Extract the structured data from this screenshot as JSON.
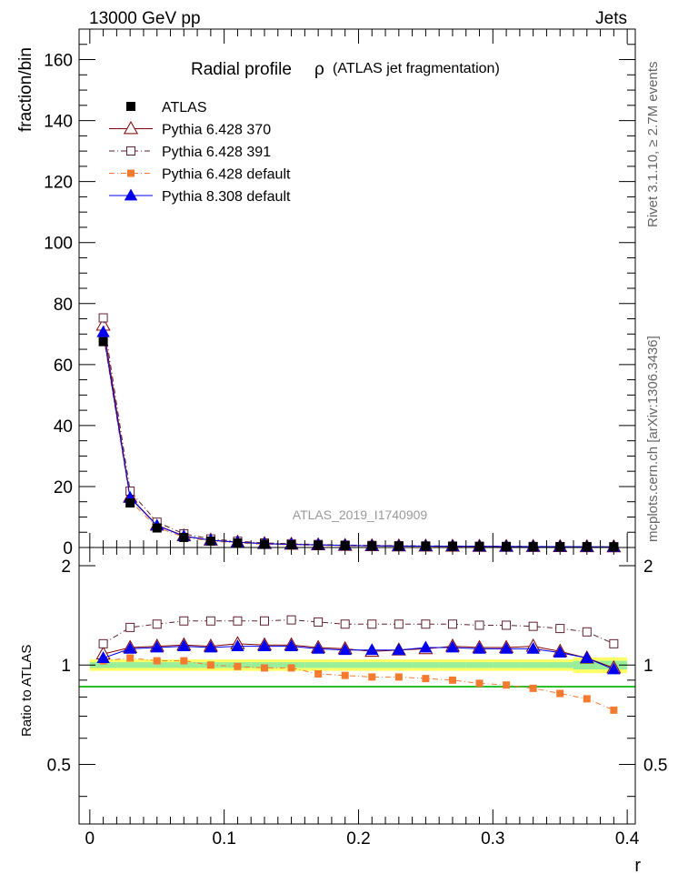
{
  "header": {
    "left": "13000 GeV pp",
    "right": "Jets"
  },
  "side_labels": {
    "rivet": "Rivet 3.1.10, ≥ 2.7M events",
    "mcplots": "mcplots.cern.ch [arXiv:1306.3436]"
  },
  "chart_data": {
    "type": "scatter",
    "title": "Radial profile",
    "title_symbol": "ρ",
    "title_note": "(ATLAS jet fragmentation)",
    "analysis_label": "ATLAS_2019_I1740909",
    "xlabel": "r",
    "ylabel_main": "fraction/bin",
    "ylabel_ratio": "Ratio to ATLAS",
    "xlim": [
      -0.008,
      0.406
    ],
    "ylim_main": [
      0,
      170
    ],
    "ylim_ratio": [
      0.33,
      2.27
    ],
    "legend_position": "top-left",
    "x_ticks": [
      0,
      0.1,
      0.2,
      0.3,
      0.4
    ],
    "x_tick_labels": [
      "0",
      "0.1",
      "0.2",
      "0.3",
      "0.4"
    ],
    "y_ticks_main": [
      0,
      20,
      40,
      60,
      80,
      100,
      120,
      140,
      160
    ],
    "y_tick_labels_main": [
      "0",
      "20",
      "40",
      "60",
      "80",
      "100",
      "120",
      "140",
      "160"
    ],
    "y_ticks_ratio": [
      0.5,
      1,
      2
    ],
    "y_tick_labels_ratio": [
      "0.5",
      "1",
      "2"
    ],
    "x": [
      0.01,
      0.03,
      0.05,
      0.07,
      0.09,
      0.11,
      0.13,
      0.15,
      0.17,
      0.19,
      0.21,
      0.23,
      0.25,
      0.27,
      0.29,
      0.31,
      0.33,
      0.35,
      0.37,
      0.39
    ],
    "band_colors": [
      "#ffff66",
      "#99ee99"
    ],
    "series": [
      {
        "name": "ATLAS",
        "marker": "square-filled",
        "color": "#000000",
        "line": "none",
        "values": [
          67.5,
          14.6,
          6.4,
          3.3,
          2.1,
          1.5,
          1.1,
          0.9,
          0.75,
          0.6,
          0.52,
          0.45,
          0.4,
          0.36,
          0.32,
          0.29,
          0.27,
          0.25,
          0.23,
          0.21
        ],
        "ratio": [
          1,
          1,
          1,
          1,
          1,
          1,
          1,
          1,
          1,
          1,
          1,
          1,
          1,
          1,
          1,
          1,
          1,
          1,
          1,
          1
        ]
      },
      {
        "name": "Pythia 6.428 370",
        "marker": "triangle-open",
        "color": "#800000",
        "line": "solid",
        "values": [
          72.9,
          16.5,
          7.3,
          3.8,
          2.4,
          1.74,
          1.27,
          1.04,
          0.85,
          0.67,
          0.57,
          0.5,
          0.45,
          0.41,
          0.36,
          0.33,
          0.31,
          0.28,
          0.24,
          0.21
        ],
        "ratio": [
          1.08,
          1.13,
          1.14,
          1.15,
          1.14,
          1.16,
          1.15,
          1.15,
          1.13,
          1.12,
          1.1,
          1.11,
          1.12,
          1.14,
          1.13,
          1.13,
          1.14,
          1.1,
          1.05,
          0.98
        ]
      },
      {
        "name": "Pythia 6.428 391",
        "marker": "square-open",
        "color": "#602030",
        "line": "dashdot",
        "values": [
          75.3,
          18.5,
          8.3,
          4.5,
          2.8,
          2.04,
          1.49,
          1.24,
          1.0,
          0.79,
          0.68,
          0.6,
          0.53,
          0.48,
          0.42,
          0.38,
          0.35,
          0.32,
          0.29,
          0.24
        ],
        "ratio": [
          1.16,
          1.3,
          1.33,
          1.36,
          1.36,
          1.36,
          1.36,
          1.37,
          1.35,
          1.33,
          1.33,
          1.33,
          1.33,
          1.33,
          1.32,
          1.32,
          1.31,
          1.29,
          1.26,
          1.16
        ]
      },
      {
        "name": "Pythia 6.428 default",
        "marker": "square-filled",
        "color": "#f47a30",
        "line": "dashdot",
        "values": [
          69.8,
          15.3,
          6.6,
          3.4,
          2.1,
          1.49,
          1.08,
          0.88,
          0.7,
          0.55,
          0.48,
          0.41,
          0.36,
          0.32,
          0.28,
          0.25,
          0.22,
          0.2,
          0.18,
          0.17
        ],
        "ratio": [
          1.03,
          1.05,
          1.03,
          1.03,
          1.0,
          0.99,
          0.98,
          0.98,
          0.94,
          0.93,
          0.92,
          0.92,
          0.91,
          0.9,
          0.88,
          0.87,
          0.85,
          0.82,
          0.79,
          0.73
        ]
      },
      {
        "name": "Pythia 8.308 default",
        "marker": "triangle-filled",
        "color": "#0000ee",
        "line": "solid",
        "values": [
          70.6,
          16.3,
          7.2,
          3.7,
          2.4,
          1.71,
          1.25,
          1.02,
          0.84,
          0.67,
          0.57,
          0.5,
          0.45,
          0.41,
          0.36,
          0.32,
          0.3,
          0.27,
          0.24,
          0.2
        ],
        "ratio": [
          1.05,
          1.12,
          1.13,
          1.14,
          1.13,
          1.14,
          1.14,
          1.14,
          1.12,
          1.11,
          1.11,
          1.11,
          1.13,
          1.13,
          1.12,
          1.12,
          1.12,
          1.09,
          1.05,
          0.97
        ]
      }
    ]
  }
}
